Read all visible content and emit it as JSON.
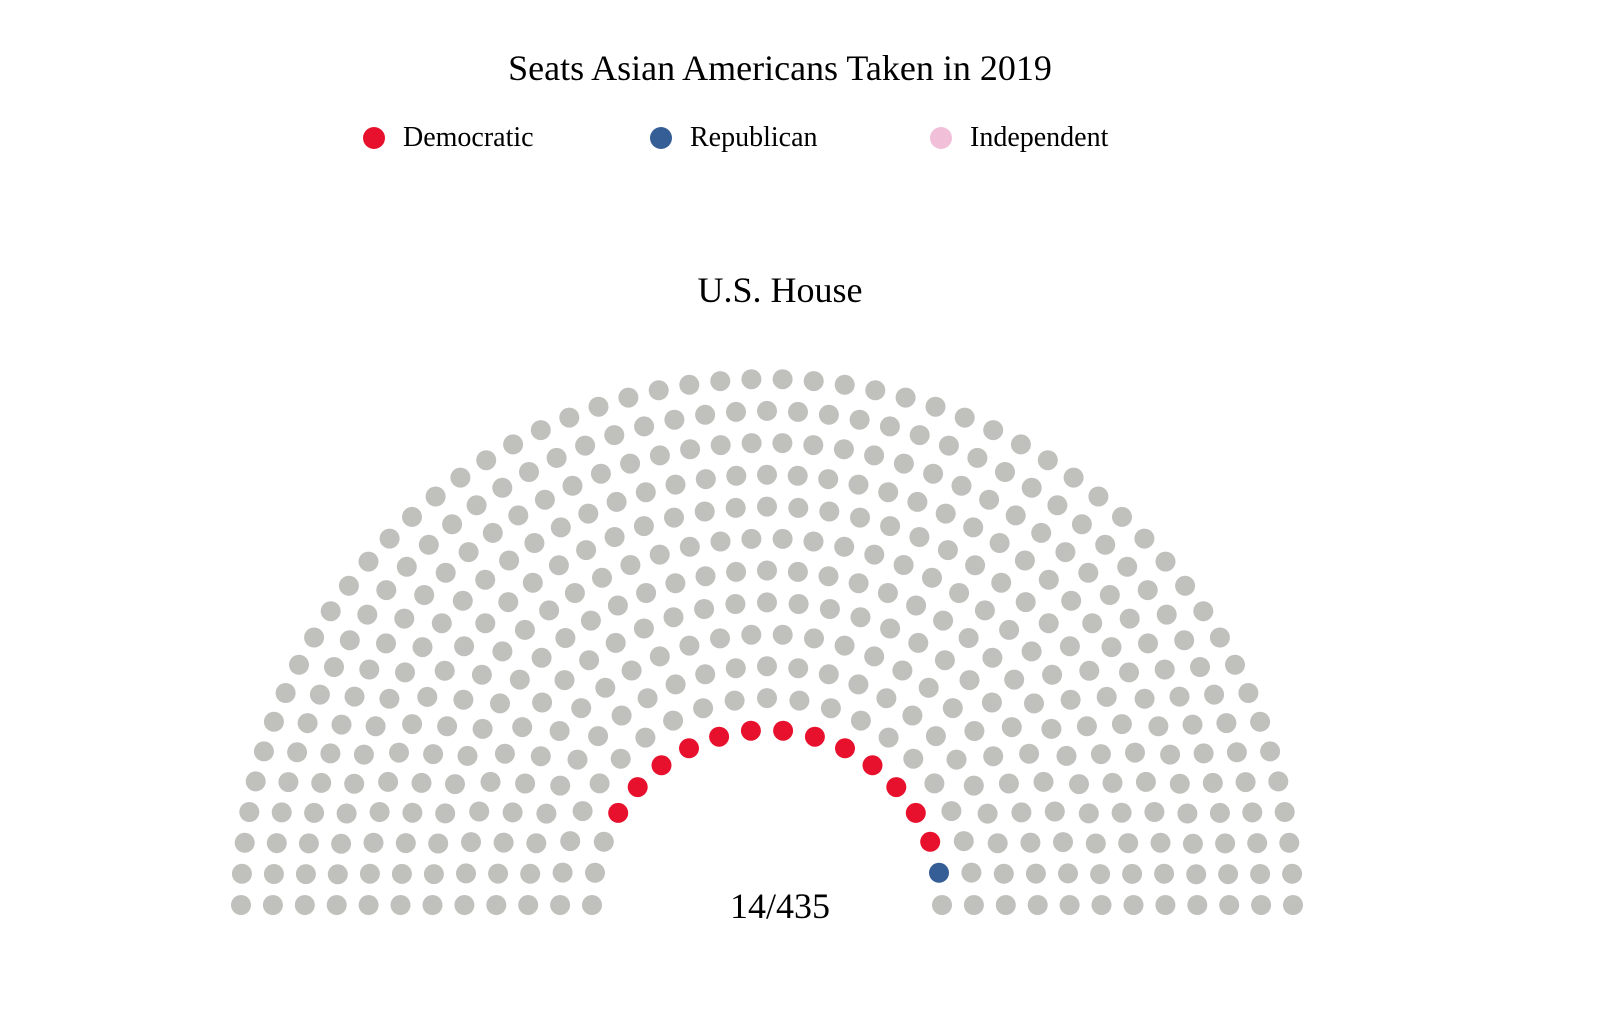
{
  "title": "Seats Asian Americans Taken in 2019",
  "legend": {
    "items": [
      {
        "label": "Democratic",
        "color": "#e8112d"
      },
      {
        "label": "Republican",
        "color": "#355e96"
      },
      {
        "label": "Independent",
        "color": "#f2bfd9"
      }
    ]
  },
  "chamber": {
    "title": "U.S. House",
    "count_label": "14/435"
  },
  "chart_data": {
    "type": "parliament",
    "title": "Seats Asian Americans Taken in 2019",
    "subtitle": "U.S. House",
    "total_seats": 435,
    "rows": 12,
    "seat_counts": {
      "Democratic": 13,
      "Republican": 1,
      "Independent": 0,
      "Other": 421
    },
    "series": [
      {
        "name": "Democratic",
        "value": 13,
        "color": "#e8112d"
      },
      {
        "name": "Republican",
        "value": 1,
        "color": "#355e96"
      },
      {
        "name": "Independent",
        "value": 0,
        "color": "#f2bfd9"
      }
    ],
    "empty_color": "#c0c0bc",
    "summary_label": "14/435"
  }
}
